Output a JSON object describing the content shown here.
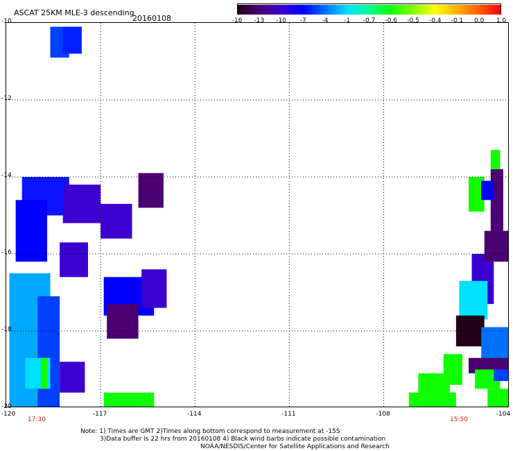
{
  "header": {
    "title": "ASCAT 25KM MLE-3 descending",
    "date": "20160108"
  },
  "colorbar": {
    "ticks": [
      "-16",
      "-13",
      "-10",
      "-7",
      "-4",
      "-1",
      "-0.7",
      "-0.6",
      "-0.5",
      "-0.4",
      "-0.1",
      "0.0",
      "1.0"
    ],
    "colors": [
      "#220018",
      "#4a0070",
      "#3c00d0",
      "#0000ff",
      "#0070ff",
      "#00e0ff",
      "#00ff90",
      "#10ff00",
      "#80ff00",
      "#ffff00",
      "#ffb000",
      "#ff6000",
      "#ff0000"
    ]
  },
  "axes": {
    "lon_min": -120,
    "lon_max": -104,
    "lat_min": -20,
    "lat_max": -10,
    "x_ticks": [
      "-120",
      "-117",
      "-114",
      "-111",
      "-108",
      "-104"
    ],
    "y_ticks": [
      "-10",
      "-12",
      "-14",
      "-16",
      "-18",
      "-20"
    ]
  },
  "times": {
    "left": "17:30",
    "right": "15:50"
  },
  "notes": {
    "line1": "Note: 1) Times are GMT 2)Times along bottom correspond to measurement at -15S",
    "line2": "3)Data buffer is 22 hrs from 20160108 4) Black wind barbs indicate possible contamination",
    "line3": "NOAA/NESDIS/Center for Satellite Applications and Research"
  },
  "regions": [
    {
      "lon": -118.6,
      "lat": -10.1,
      "w": 0.6,
      "h": 0.8,
      "color": "#0040ff"
    },
    {
      "lon": -118.2,
      "lat": -10.1,
      "w": 0.6,
      "h": 0.7,
      "color": "#0020ff"
    },
    {
      "lon": -119.5,
      "lat": -14.0,
      "w": 1.5,
      "h": 1.0,
      "color": "#0a14ff"
    },
    {
      "lon": -118.2,
      "lat": -14.2,
      "w": 1.2,
      "h": 1.0,
      "color": "#3c00d0"
    },
    {
      "lon": -117.0,
      "lat": -14.7,
      "w": 1.0,
      "h": 0.9,
      "color": "#3c00d0"
    },
    {
      "lon": -119.7,
      "lat": -14.6,
      "w": 1.0,
      "h": 1.6,
      "color": "#0000ff"
    },
    {
      "lon": -118.3,
      "lat": -15.7,
      "w": 0.9,
      "h": 0.9,
      "color": "#3c00d0"
    },
    {
      "lon": -115.8,
      "lat": -13.9,
      "w": 0.8,
      "h": 0.9,
      "color": "#4a0070"
    },
    {
      "lon": -119.9,
      "lat": -16.5,
      "w": 1.3,
      "h": 3.9,
      "color": "#00a8ff"
    },
    {
      "lon": -119.0,
      "lat": -17.1,
      "w": 0.7,
      "h": 3.4,
      "color": "#0040ff"
    },
    {
      "lon": -119.4,
      "lat": -18.7,
      "w": 0.8,
      "h": 0.8,
      "color": "#00e0ff"
    },
    {
      "lon": -118.3,
      "lat": -18.8,
      "w": 0.8,
      "h": 0.8,
      "color": "#3c00d0"
    },
    {
      "lon": -118.9,
      "lat": -18.7,
      "w": 0.2,
      "h": 0.8,
      "color": "#10ff00"
    },
    {
      "lon": -116.9,
      "lat": -16.6,
      "w": 1.6,
      "h": 1.0,
      "color": "#0000ff"
    },
    {
      "lon": -115.7,
      "lat": -16.4,
      "w": 0.8,
      "h": 1.0,
      "color": "#3c00d0"
    },
    {
      "lon": -116.8,
      "lat": -17.3,
      "w": 1.0,
      "h": 0.9,
      "color": "#4a0070"
    },
    {
      "lon": -116.9,
      "lat": -19.6,
      "w": 1.6,
      "h": 0.5,
      "color": "#10ff00"
    },
    {
      "lon": -104.6,
      "lat": -13.3,
      "w": 0.3,
      "h": 0.5,
      "color": "#10ff00"
    },
    {
      "lon": -104.6,
      "lat": -13.8,
      "w": 0.4,
      "h": 2.4,
      "color": "#4a0070"
    },
    {
      "lon": -105.3,
      "lat": -14.0,
      "w": 0.5,
      "h": 0.9,
      "color": "#10ff00"
    },
    {
      "lon": -104.9,
      "lat": -14.1,
      "w": 0.4,
      "h": 0.5,
      "color": "#0000ff"
    },
    {
      "lon": -105.2,
      "lat": -16.0,
      "w": 0.7,
      "h": 1.3,
      "color": "#3c00d0"
    },
    {
      "lon": -104.8,
      "lat": -15.4,
      "w": 0.8,
      "h": 0.8,
      "color": "#4a0070"
    },
    {
      "lon": -105.6,
      "lat": -16.7,
      "w": 0.9,
      "h": 1.0,
      "color": "#00e0ff"
    },
    {
      "lon": -105.7,
      "lat": -17.6,
      "w": 0.9,
      "h": 0.8,
      "color": "#220018"
    },
    {
      "lon": -104.9,
      "lat": -17.9,
      "w": 0.9,
      "h": 1.3,
      "color": "#0070ff"
    },
    {
      "lon": -105.3,
      "lat": -18.7,
      "w": 1.3,
      "h": 0.4,
      "color": "#4a0070"
    },
    {
      "lon": -106.1,
      "lat": -18.6,
      "w": 0.6,
      "h": 0.8,
      "color": "#10ff00"
    },
    {
      "lon": -106.9,
      "lat": -19.1,
      "w": 1.0,
      "h": 0.9,
      "color": "#10ff00"
    },
    {
      "lon": -107.2,
      "lat": -19.6,
      "w": 1.5,
      "h": 0.5,
      "color": "#10ff00"
    },
    {
      "lon": -105.1,
      "lat": -19.0,
      "w": 0.8,
      "h": 0.5,
      "color": "#10ff00"
    },
    {
      "lon": -104.7,
      "lat": -19.5,
      "w": 0.7,
      "h": 0.6,
      "color": "#10ff00"
    },
    {
      "lon": -104.5,
      "lat": -19.0,
      "w": 0.6,
      "h": 0.3,
      "color": "#0040ff"
    }
  ]
}
